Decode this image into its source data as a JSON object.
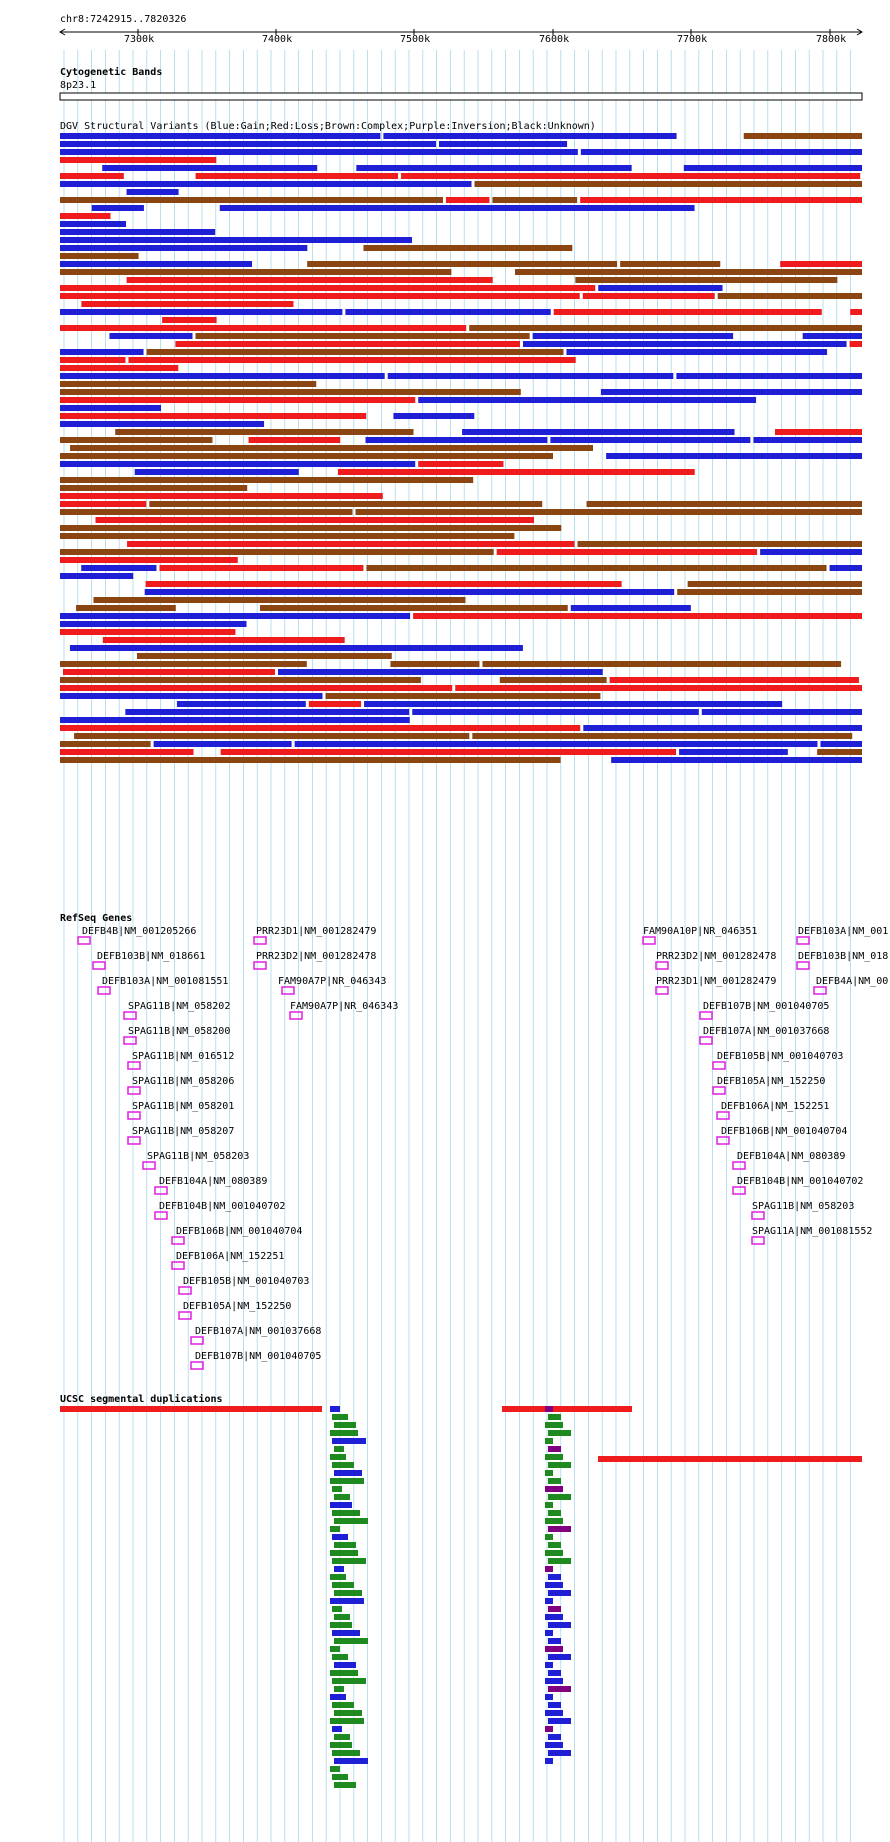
{
  "locus": "chr8:7242915..7820326",
  "ruler": {
    "ticks": [
      "7300k",
      "7400k",
      "7500k",
      "7600k",
      "7700k",
      "7800k"
    ]
  },
  "tracks": {
    "cytoband": {
      "title": "Cytogenetic Bands",
      "band": "8p23.1"
    },
    "dgv": {
      "title": "DGV Structural Variants (Blue:Gain;Red:Loss;Brown:Complex;Purple:Inversion;Black:Unknown)"
    },
    "refseq": {
      "title": "RefSeq Genes"
    },
    "segdup": {
      "title": "UCSC segmental duplications"
    }
  },
  "colors": {
    "gain": "#1f1fd6",
    "loss": "#ee1c1c",
    "complex": "#8b4513",
    "inversion": "#800080",
    "unknown": "#000000",
    "gene": "#e020e0",
    "segdup_red": "#ee1c1c",
    "segdup_green": "#1f8a1f",
    "segdup_blue": "#1f1fd6",
    "segdup_purple": "#800080",
    "grid": "#a8d8ea"
  },
  "genes": [
    "DEFB4B|NM_001205266",
    "DEFB103B|NM_018661",
    "DEFB103A|NM_001081551",
    "SPAG11B|NM_058202",
    "SPAG11B|NM_058200",
    "SPAG11B|NM_016512",
    "SPAG11B|NM_058206",
    "SPAG11B|NM_058201",
    "SPAG11B|NM_058207",
    "SPAG11B|NM_058203",
    "DEFB104A|NM_080389",
    "DEFB104B|NM_001040702",
    "DEFB106B|NM_001040704",
    "DEFB106A|NM_152251",
    "DEFB105B|NM_001040703",
    "DEFB105A|NM_152250",
    "DEFB107A|NM_001037668",
    "DEFB107B|NM_001040705",
    "PRR23D1|NM_001282479",
    "PRR23D2|NM_001282478",
    "FAM90A7P|NR_046343",
    "FAM90A7P|NR_046343",
    "FAM90A10P|NR_046351",
    "PRR23D2|NM_001282478",
    "PRR23D1|NM_001282479",
    "DEFB107B|NM_001040705",
    "DEFB107A|NM_001037668",
    "DEFB105B|NM_001040703",
    "DEFB105A|NM_152250",
    "DEFB106A|NM_152251",
    "DEFB106B|NM_001040704",
    "DEFB104A|NM_080389",
    "DEFB104B|NM_001040702",
    "SPAG11B|NM_058203",
    "SPAG11A|NM_001081552",
    "DEFB103A|NM_001",
    "DEFB103B|NM_018",
    "DEFB4A|NM_00"
  ]
}
